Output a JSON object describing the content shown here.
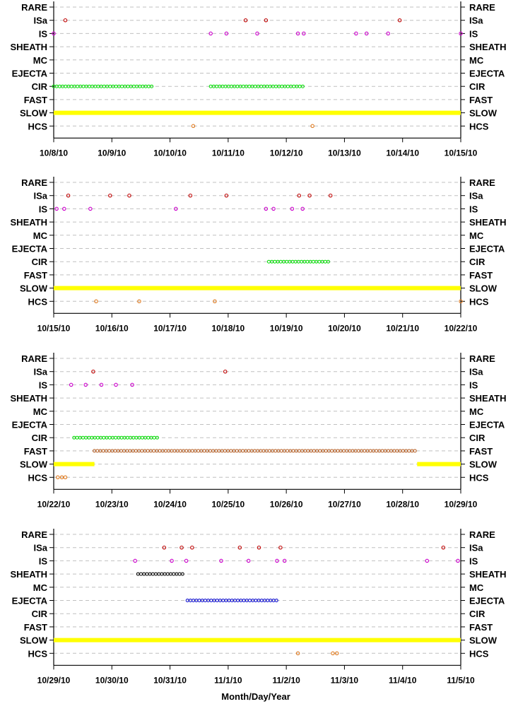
{
  "chart_data": {
    "type": "scatter",
    "xlabel": "Month/Day/Year",
    "categories": [
      "RARE",
      "ISa",
      "IS",
      "SHEATH",
      "MC",
      "EJECTA",
      "CIR",
      "FAST",
      "SLOW",
      "HCS"
    ],
    "colors": {
      "ISa": "#c00000",
      "IS": "#cc00cc",
      "SHEATH": "#000000",
      "EJECTA": "#0000cc",
      "CIR": "#00dd00",
      "FAST": "#b45a1e",
      "SLOW": "#ffff00",
      "HCS": "#e07b20",
      "grid": "#c0c0c0"
    },
    "panels": [
      {
        "id": "panel-1",
        "start": "2010-10-08",
        "xlim": [
          0,
          7
        ],
        "xticks": [
          "10/8/10",
          "10/9/10",
          "10/10/10",
          "10/11/10",
          "10/12/10",
          "10/13/10",
          "10/14/10",
          "10/15/10"
        ],
        "points": {
          "ISa": [
            0.2,
            3.3,
            3.65,
            5.95
          ],
          "IS": [
            0.0,
            2.7,
            2.97,
            3.5,
            4.2,
            4.3,
            5.2,
            5.38,
            5.75,
            7.0
          ],
          "HCS": [
            2.4,
            4.45
          ]
        },
        "ranges": {
          "CIR": [
            [
              0.0,
              1.7
            ],
            [
              2.7,
              4.3
            ]
          ],
          "SLOW": [
            [
              0.0,
              7.0
            ]
          ]
        }
      },
      {
        "id": "panel-2",
        "start": "2010-10-15",
        "xlim": [
          0,
          7
        ],
        "xticks": [
          "10/15/10",
          "10/16/10",
          "10/17/10",
          "10/18/10",
          "10/19/10",
          "10/20/10",
          "10/21/10",
          "10/22/10"
        ],
        "points": {
          "ISa": [
            0.25,
            0.97,
            1.3,
            2.35,
            2.97,
            4.22,
            4.4,
            4.76
          ],
          "IS": [
            0.05,
            0.18,
            0.63,
            2.1,
            3.65,
            3.78,
            4.1,
            4.28
          ],
          "HCS": [
            0.73,
            1.47,
            2.77,
            7.0
          ]
        },
        "ranges": {
          "CIR": [
            [
              3.7,
              4.75
            ]
          ],
          "SLOW": [
            [
              0.0,
              7.0
            ]
          ]
        }
      },
      {
        "id": "panel-3",
        "start": "2010-10-22",
        "xlim": [
          0,
          7
        ],
        "xticks": [
          "10/22/10",
          "10/23/10",
          "10/24/10",
          "10/25/10",
          "10/26/10",
          "10/27/10",
          "10/28/10",
          "10/29/10"
        ],
        "points": {
          "ISa": [
            0.68,
            2.95
          ],
          "IS": [
            0.3,
            0.55,
            0.82,
            1.07,
            1.35
          ],
          "HCS": [
            0.07,
            0.14,
            0.2
          ]
        },
        "ranges": {
          "CIR": [
            [
              0.35,
              1.8
            ]
          ],
          "FAST": [
            [
              0.7,
              6.25
            ]
          ],
          "SLOW": [
            [
              0.0,
              0.7
            ],
            [
              6.25,
              7.0
            ]
          ]
        }
      },
      {
        "id": "panel-4",
        "start": "2010-10-29",
        "xlim": [
          0,
          7
        ],
        "xticks": [
          "10/29/10",
          "10/30/10",
          "10/31/10",
          "11/1/10",
          "11/2/10",
          "11/3/10",
          "11/4/10",
          "11/5/10"
        ],
        "points": {
          "ISa": [
            1.9,
            2.2,
            2.38,
            3.2,
            3.53,
            3.9,
            6.7
          ],
          "IS": [
            1.4,
            2.03,
            2.28,
            2.88,
            3.35,
            3.84,
            3.97,
            6.42,
            6.95
          ],
          "HCS": [
            4.2,
            4.8,
            4.87
          ]
        },
        "ranges": {
          "SHEATH": [
            [
              1.45,
              2.25
            ]
          ],
          "EJECTA": [
            [
              2.3,
              3.87
            ]
          ],
          "SLOW": [
            [
              0.0,
              7.0
            ]
          ]
        }
      }
    ]
  }
}
